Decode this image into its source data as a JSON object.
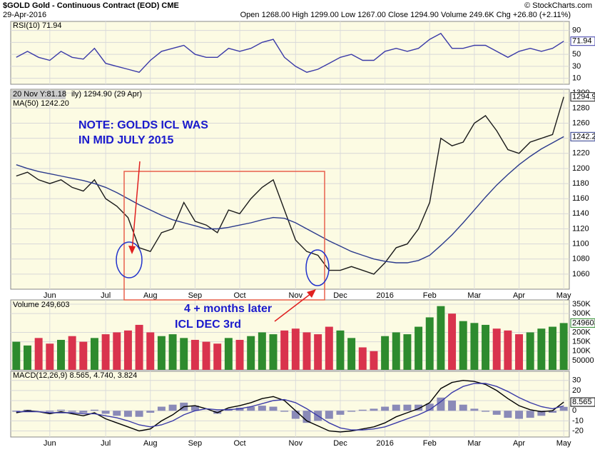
{
  "header": {
    "symbol": "$GOLD Gold - Continuous Contract (EOD) CME",
    "date": "29-Apr-2016",
    "quote": "Open 1268.00 High 1299.00 Low 1267.00 Close 1294.90 Volume 249.6K Chg +26.80 (+2.11%)",
    "credit": "© StockCharts.com"
  },
  "annotations": [
    "NOTE: GOLDS ICL WAS",
    "IN MID JULY 2015",
    "4 + months later",
    "ICL DEC 3rd"
  ],
  "chart_data": [
    {
      "type": "line",
      "title": "RSI(10) 71.94",
      "ylim": [
        0,
        105
      ],
      "yticks": [
        10,
        30,
        50,
        70,
        90
      ],
      "grid": true,
      "series": [
        {
          "name": "RSI(10)",
          "color": "#3a3aa8",
          "tag": true,
          "values": [
            45,
            55,
            45,
            40,
            55,
            45,
            42,
            60,
            35,
            30,
            25,
            20,
            40,
            55,
            60,
            65,
            50,
            45,
            45,
            60,
            55,
            60,
            70,
            75,
            45,
            30,
            20,
            25,
            35,
            45,
            50,
            40,
            40,
            55,
            60,
            55,
            60,
            75,
            85,
            60,
            60,
            65,
            65,
            55,
            45,
            55,
            60,
            55,
            60,
            71.94
          ]
        }
      ]
    },
    {
      "type": "line",
      "title": "ily) 1294.90 (29 Apr)",
      "subtitle": "MA(50) 1242.20",
      "crosshair": "20 Nov Y:81.18",
      "categories": [
        null,
        null,
        null,
        "Jun",
        null,
        null,
        null,
        null,
        "Jul",
        null,
        null,
        null,
        "Aug",
        null,
        null,
        null,
        "Sep",
        null,
        null,
        null,
        "Oct",
        null,
        null,
        null,
        null,
        "Nov",
        null,
        null,
        null,
        "Dec",
        null,
        null,
        null,
        "2016",
        null,
        null,
        null,
        "Feb",
        null,
        null,
        null,
        "Mar",
        null,
        null,
        null,
        "Apr",
        null,
        null,
        null,
        "May"
      ],
      "ylim": [
        1040,
        1305
      ],
      "yticks": [
        1060,
        1080,
        1100,
        1120,
        1140,
        1160,
        1180,
        1200,
        1220,
        1240,
        1260,
        1280,
        1300
      ],
      "grid": true,
      "series": [
        {
          "name": "$GOLD",
          "color": "#1a1a1a",
          "tag": true,
          "values": [
            1190,
            1195,
            1185,
            1180,
            1185,
            1175,
            1170,
            1185,
            1160,
            1150,
            1135,
            1095,
            1090,
            1115,
            1120,
            1155,
            1130,
            1125,
            1115,
            1145,
            1140,
            1160,
            1175,
            1185,
            1145,
            1105,
            1090,
            1085,
            1065,
            1065,
            1070,
            1065,
            1060,
            1075,
            1095,
            1100,
            1120,
            1155,
            1240,
            1230,
            1235,
            1260,
            1270,
            1250,
            1225,
            1220,
            1235,
            1240,
            1245,
            1294.9
          ]
        },
        {
          "name": "MA(50)",
          "color": "#2b3a8c",
          "tag": true,
          "values": [
            1205,
            1200,
            1196,
            1193,
            1190,
            1187,
            1184,
            1180,
            1175,
            1168,
            1160,
            1152,
            1145,
            1138,
            1132,
            1128,
            1124,
            1120,
            1120,
            1122,
            1125,
            1128,
            1132,
            1135,
            1134,
            1128,
            1120,
            1112,
            1104,
            1097,
            1090,
            1085,
            1080,
            1077,
            1075,
            1075,
            1078,
            1085,
            1098,
            1112,
            1128,
            1145,
            1162,
            1178,
            1192,
            1205,
            1216,
            1226,
            1234,
            1242.2
          ]
        }
      ]
    },
    {
      "type": "bar",
      "title": "Volume 249,603",
      "ylim": [
        0,
        373000
      ],
      "yticks": [
        50000,
        {
          "value": 100000,
          "label": "100K"
        },
        {
          "value": 150000,
          "label": "150K"
        },
        {
          "value": 200000,
          "label": "200K"
        },
        {
          "value": 300000,
          "label": "300K"
        },
        {
          "value": 350000,
          "label": "350K"
        }
      ],
      "grid": true,
      "series": [
        {
          "name": "Volume",
          "type": "bar",
          "color": "#2e8b2e",
          "tag": true,
          "colors": [
            "#2e8b2e",
            "#2e8b2e",
            "#d9334d",
            "#d9334d",
            "#2e8b2e",
            "#d9334d",
            "#d9334d",
            "#2e8b2e",
            "#d9334d",
            "#d9334d",
            "#d9334d",
            "#d9334d",
            "#d9334d",
            "#2e8b2e",
            "#2e8b2e",
            "#2e8b2e",
            "#d9334d",
            "#d9334d",
            "#d9334d",
            "#2e8b2e",
            "#d9334d",
            "#2e8b2e",
            "#2e8b2e",
            "#2e8b2e",
            "#d9334d",
            "#d9334d",
            "#d9334d",
            "#d9334d",
            "#d9334d",
            "#2e8b2e",
            "#2e8b2e",
            "#d9334d",
            "#d9334d",
            "#2e8b2e",
            "#2e8b2e",
            "#2e8b2e",
            "#2e8b2e",
            "#2e8b2e",
            "#2e8b2e",
            "#d9334d",
            "#2e8b2e",
            "#2e8b2e",
            "#2e8b2e",
            "#d9334d",
            "#d9334d",
            "#d9334d",
            "#2e8b2e",
            "#2e8b2e",
            "#2e8b2e",
            "#2e8b2e"
          ],
          "values": [
            150000,
            130000,
            170000,
            140000,
            160000,
            180000,
            150000,
            170000,
            190000,
            200000,
            210000,
            240000,
            200000,
            180000,
            190000,
            170000,
            160000,
            150000,
            140000,
            170000,
            160000,
            180000,
            200000,
            190000,
            210000,
            220000,
            200000,
            190000,
            230000,
            210000,
            170000,
            120000,
            100000,
            180000,
            200000,
            190000,
            230000,
            280000,
            340000,
            300000,
            260000,
            250000,
            240000,
            220000,
            210000,
            190000,
            200000,
            220000,
            230000,
            249603
          ]
        }
      ]
    },
    {
      "type": "line",
      "title": "MACD(12,26,9) 8.565, 4.740, 3.824",
      "categories": [
        null,
        null,
        null,
        "Jun",
        null,
        null,
        null,
        null,
        "Jul",
        null,
        null,
        null,
        "Aug",
        null,
        null,
        null,
        "Sep",
        null,
        null,
        null,
        "Oct",
        null,
        null,
        null,
        null,
        "Nov",
        null,
        null,
        null,
        "Dec",
        null,
        null,
        null,
        "2016",
        null,
        null,
        null,
        "Feb",
        null,
        null,
        null,
        "Mar",
        null,
        null,
        null,
        "Apr",
        null,
        null,
        null,
        "May"
      ],
      "ylim": [
        -26,
        39
      ],
      "yticks": [
        -20,
        -10,
        0,
        10,
        20,
        30
      ],
      "grid": true,
      "series": [
        {
          "name": "Histogram",
          "type": "bar",
          "color": "#8a8ab8",
          "values": [
            -1,
            1,
            0,
            -1,
            1,
            -1,
            -2,
            1,
            -3,
            -5,
            -6,
            -6,
            -2,
            4,
            6,
            8,
            5,
            0,
            -3,
            2,
            3,
            4,
            5,
            4,
            -1,
            -8,
            -12,
            -10,
            -8,
            -4,
            -1,
            1,
            2,
            4,
            6,
            6,
            6,
            7,
            13,
            10,
            6,
            2,
            -1,
            -4,
            -7,
            -8,
            -7,
            -5,
            -2,
            3.824
          ]
        },
        {
          "name": "MACD",
          "color": "#000000",
          "tag": true,
          "values": [
            -2,
            0,
            -1,
            -3,
            -1,
            -3,
            -5,
            -2,
            -8,
            -12,
            -16,
            -20,
            -18,
            -10,
            -4,
            4,
            5,
            2,
            -2,
            3,
            5,
            8,
            12,
            14,
            10,
            0,
            -10,
            -15,
            -20,
            -21,
            -20,
            -18,
            -16,
            -12,
            -6,
            -2,
            2,
            8,
            22,
            28,
            30,
            29,
            26,
            20,
            12,
            5,
            1,
            -1,
            0,
            8.565
          ]
        },
        {
          "name": "Signal",
          "color": "#3a3aa8",
          "values": [
            -1,
            -1,
            -1,
            -2,
            -2,
            -2,
            -3,
            -3,
            -5,
            -7,
            -10,
            -14,
            -16,
            -14,
            -10,
            -4,
            0,
            2,
            1,
            1,
            2,
            4,
            7,
            10,
            11,
            8,
            2,
            -5,
            -12,
            -17,
            -19,
            -19,
            -18,
            -16,
            -12,
            -8,
            -4,
            1,
            9,
            18,
            24,
            27,
            27,
            24,
            19,
            13,
            8,
            4,
            2,
            4.74
          ]
        }
      ]
    }
  ]
}
